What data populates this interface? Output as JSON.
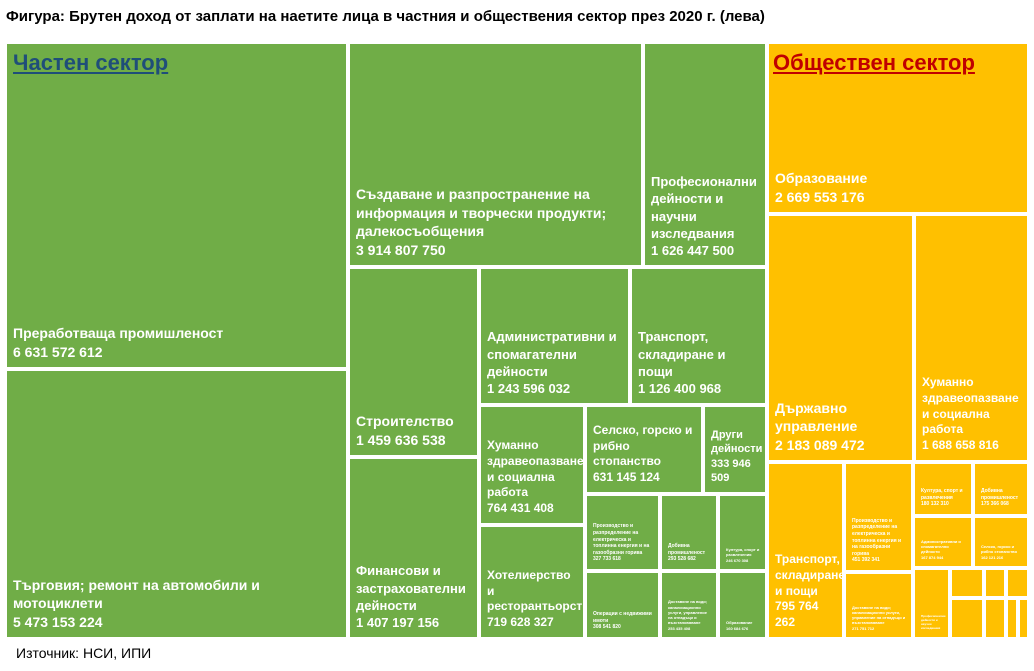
{
  "title": "Фигура: Брутен доход от заплати на наетите лица в частния и обществения сектор през 2020 г. (лева)",
  "source": "Източник: НСИ, ИПИ",
  "colors": {
    "private": "#70ad47",
    "public": "#ffc000",
    "private_heading": "#1f4e79",
    "public_heading": "#c00000"
  },
  "chart_data": {
    "type": "treemap",
    "title": "Фигура: Брутен доход от заплати на наетите лица в частния и обществения сектор през 2020 г. (лева)",
    "groups": [
      {
        "name": "Частен сектор",
        "items": [
          {
            "label": "Преработваща промишленост",
            "value_text": "6 631 572 612",
            "value": 6631572612
          },
          {
            "label": "Търговия; ремонт на автомобили и мотоциклети",
            "value_text": "5 473 153 224",
            "value": 5473153224
          },
          {
            "label": "Създаване и разпространение на информация и творчески продукти; далекосъобщения",
            "value_text": "3 914 807 750",
            "value": 3914807750
          },
          {
            "label": "Професионални дейности и научни изследвания",
            "value_text": "1 626 447 500",
            "value": 1626447500
          },
          {
            "label": "Строителство",
            "value_text": "1 459 636 538",
            "value": 1459636538
          },
          {
            "label": "Финансови и застрахователни дейности",
            "value_text": "1 407 197 156",
            "value": 1407197156
          },
          {
            "label": "Административни и спомагателни дейности",
            "value_text": "1 243 596 032",
            "value": 1243596032
          },
          {
            "label": "Транспорт, складиране и пощи",
            "value_text": "1 126 400 968",
            "value": 1126400968
          },
          {
            "label": "Хуманно здравеопазване и социална работа",
            "value_text": "764 431 408",
            "value": 764431408
          },
          {
            "label": "Хотелиерство и ресторантьорство",
            "value_text": "719 628 327",
            "value": 719628327
          },
          {
            "label": "Селско, горско и рибно стопанство",
            "value_text": "631 145 124",
            "value": 631145124
          },
          {
            "label": "Други дейности",
            "value_text": "333 946 509",
            "value": 333946509
          },
          {
            "label": "Производство и разпределение на електрическа и топлинна енергия и на газообразни горива",
            "value_text": "327 733 618",
            "value": 327733618
          },
          {
            "label": "Добивна промишленост",
            "value_text": "293 528 682",
            "value": 293528682
          },
          {
            "label": "Култура, спорт и развлечения",
            "value_text": "246 670 308",
            "value": 246670308
          },
          {
            "label": "Операции с недвижими имоти",
            "value_text": "308 541 820",
            "value": 308541820
          },
          {
            "label": "Доставяне на води; канализационни услуги, управление на отпадъци и възстановяване",
            "value_text": "253 435 408",
            "value": 253435408
          },
          {
            "label": "Образование",
            "value_text": "160 684 676",
            "value": 160684676
          }
        ]
      },
      {
        "name": "Обществен сектор",
        "items": [
          {
            "label": "Образование",
            "value_text": "2 669 553 176",
            "value": 2669553176
          },
          {
            "label": "Държавно управление",
            "value_text": "2 183 089 472",
            "value": 2183089472
          },
          {
            "label": "Хуманно здравеопазване и социална работа",
            "value_text": "1 688 658 816",
            "value": 1688658816
          },
          {
            "label": "Транспорт, складиране и пощи",
            "value_text": "795 764 262",
            "value": 795764262
          },
          {
            "label": "Производство и разпределение на електрическа и топлинна енергия и на газообразни горива",
            "value_text": "451 392 341",
            "value": 451392341
          },
          {
            "label": "Доставяне на води; канализационни услуги, управление на отпадъци и възстановяване",
            "value_text": "271 751 712",
            "value": 271751712
          },
          {
            "label": "Култура, спорт и развлечения",
            "value_text": "180 132 310",
            "value": 180132310
          },
          {
            "label": "Добивна промишленост",
            "value_text": "175 366 068",
            "value": 175366068
          },
          {
            "label": "Административни и спомагателни дейности",
            "value_text": "167 874 944",
            "value": 167874944
          },
          {
            "label": "Селско, горско и рибно стопанство",
            "value_text": "162 121 216",
            "value": 162121216
          },
          {
            "label": "Професионални дейности и научни изследвания",
            "value_text": "",
            "value": null
          },
          {
            "label": "",
            "value_text": "",
            "value": null
          },
          {
            "label": "",
            "value_text": "",
            "value": null
          },
          {
            "label": "",
            "value_text": "",
            "value": null
          },
          {
            "label": "",
            "value_text": "",
            "value": null
          },
          {
            "label": "",
            "value_text": "",
            "value": null
          },
          {
            "label": "",
            "value_text": "",
            "value": null
          },
          {
            "label": "",
            "value_text": "",
            "value": null
          }
        ]
      }
    ]
  }
}
